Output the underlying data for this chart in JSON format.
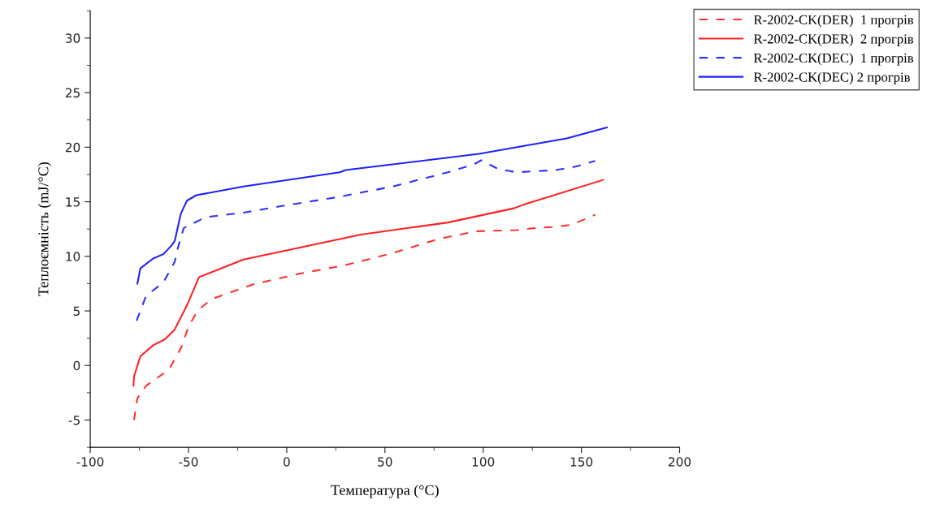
{
  "chart_data": {
    "type": "line",
    "xlabel": "Температура (°C)",
    "ylabel": "Теплоємність (mJ/°C)",
    "xlim": [
      -100,
      200
    ],
    "xticks": [
      -100,
      -50,
      0,
      50,
      100,
      150,
      200
    ],
    "ylim": [
      -7.5,
      32.5
    ],
    "yticks": [
      -5,
      0,
      5,
      10,
      15,
      20,
      25,
      30
    ],
    "grid": false,
    "legend": "top right",
    "marker": "none",
    "series": [
      {
        "name": "R-2002-CK(DER)  1 прогрів",
        "color": "#ff3030",
        "line_style": "dashed",
        "x": [
          -77.7,
          -76,
          -71.5,
          -60,
          -53.9,
          -49.9,
          -45,
          -38,
          -17.7,
          6.3,
          30,
          54,
          77.5,
          96.5,
          117,
          126.7,
          136.6,
          145,
          157
        ],
        "values": [
          -5.0,
          -3.0,
          -1.85,
          -0.4,
          1.56,
          3.6,
          5.1,
          6.1,
          7.4,
          8.4,
          9.2,
          10.3,
          11.6,
          12.3,
          12.4,
          12.6,
          12.7,
          12.9,
          13.8
        ]
      },
      {
        "name": "R-2002-CK(DER)  2 прогрів",
        "color": "#ff2020",
        "line_style": "solid",
        "x": [
          -78,
          -77.7,
          -74.5,
          -68,
          -62,
          -57,
          -50.8,
          -44.6,
          -22,
          37.8,
          82,
          115.6,
          120,
          161
        ],
        "values": [
          -1.85,
          -1.0,
          0.84,
          1.85,
          2.4,
          3.3,
          5.5,
          8.1,
          9.7,
          12.0,
          13.1,
          14.4,
          14.7,
          17.0
        ]
      },
      {
        "name": "R-2002-CK(DEC)  1 прогрів",
        "color": "#3030ff",
        "line_style": "dashed",
        "x": [
          -76.4,
          -71.5,
          -62.8,
          -57,
          -55.5,
          -52.4,
          -41,
          -22,
          -3,
          25,
          54,
          82,
          95,
          99,
          107.7,
          117,
          136.6,
          146.6,
          157
        ],
        "values": [
          4.1,
          6.4,
          7.6,
          9.5,
          10.7,
          12.6,
          13.6,
          14.0,
          14.6,
          15.4,
          16.4,
          17.7,
          18.4,
          18.8,
          18.0,
          17.7,
          17.9,
          18.2,
          18.75
        ]
      },
      {
        "name": "R-2002-CK(DEC) 2 прогрів",
        "color": "#2020ff",
        "line_style": "solid",
        "x": [
          -76,
          -74.5,
          -68,
          -62.8,
          -58.6,
          -57,
          -53.9,
          -50.8,
          -46,
          -22,
          27,
          30,
          98,
          142.5,
          163
        ],
        "values": [
          7.5,
          8.9,
          9.8,
          10.2,
          11.0,
          11.4,
          13.9,
          15.1,
          15.6,
          16.4,
          17.7,
          17.9,
          19.4,
          20.8,
          21.8
        ]
      }
    ]
  }
}
